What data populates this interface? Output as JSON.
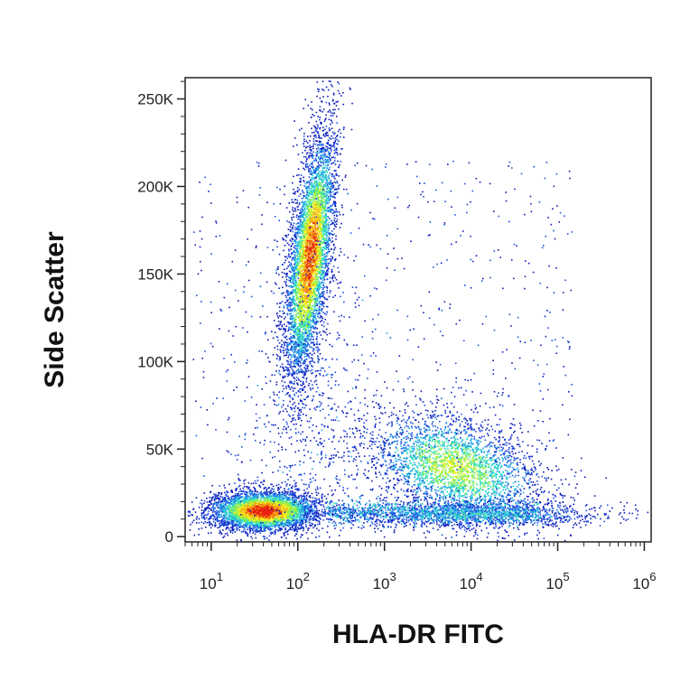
{
  "chart_data": {
    "type": "scatter",
    "subtype": "flow-cytometry-density-dot-plot",
    "xlabel": "HLA-DR FITC",
    "ylabel": "Side Scatter",
    "x_scale": "log",
    "xlim": [
      5,
      1200000
    ],
    "ylim": [
      -3000,
      262144
    ],
    "x_ticks": [
      {
        "base": "10",
        "exp": "1",
        "value": 10
      },
      {
        "base": "10",
        "exp": "2",
        "value": 100
      },
      {
        "base": "10",
        "exp": "3",
        "value": 1000
      },
      {
        "base": "10",
        "exp": "4",
        "value": 10000
      },
      {
        "base": "10",
        "exp": "5",
        "value": 100000
      },
      {
        "base": "10",
        "exp": "6",
        "value": 1000000
      }
    ],
    "y_ticks": [
      {
        "label": "0",
        "value": 0
      },
      {
        "label": "50K",
        "value": 50000
      },
      {
        "label": "100K",
        "value": 100000
      },
      {
        "label": "150K",
        "value": 150000
      },
      {
        "label": "200K",
        "value": 200000
      },
      {
        "label": "250K",
        "value": 250000
      }
    ],
    "color_scale": [
      "#0a1ab8",
      "#1f4fe0",
      "#22a7e8",
      "#2fe0c0",
      "#8ef040",
      "#f5f020",
      "#f5a010",
      "#e82010"
    ],
    "populations": [
      {
        "description": "high side scatter, HLA-DR low",
        "x_center": 100,
        "y_center": 160000,
        "density": "high"
      },
      {
        "description": "low side scatter, HLA-DR low",
        "x_center": 60,
        "y_center": 15000,
        "density": "highest"
      },
      {
        "description": "medium side scatter, HLA-DR positive",
        "x_center": 4000,
        "y_center": 45000,
        "density": "medium"
      },
      {
        "description": "low side scatter, HLA-DR positive",
        "x_center": 15000,
        "y_center": 15000,
        "density": "low"
      }
    ],
    "grid": false,
    "legend": "none"
  }
}
